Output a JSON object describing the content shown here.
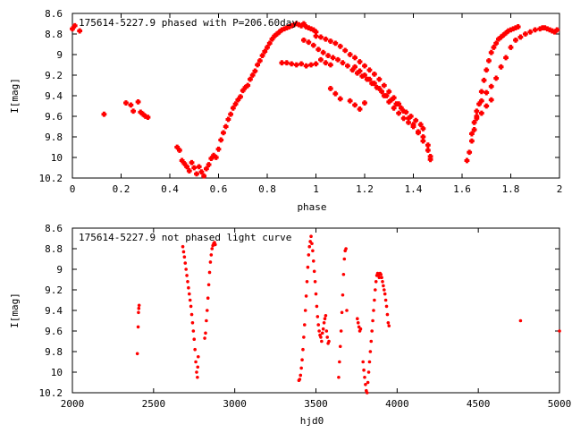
{
  "chart_data": [
    {
      "type": "scatter",
      "title": "175614-5227.9 phased with P=206.60day",
      "xlabel": "phase",
      "ylabel": "I[mag]",
      "xlim": [
        0,
        2
      ],
      "ylim": [
        10.2,
        8.6
      ],
      "y_inverted": true,
      "xticks": [
        "0",
        "0.2",
        "0.4",
        "0.6",
        "0.8",
        "1",
        "1.2",
        "1.4",
        "1.6",
        "1.8",
        "2"
      ],
      "yticks": [
        "8.6",
        "8.8",
        "9",
        "9.2",
        "9.4",
        "9.6",
        "9.8",
        "10",
        "10.2"
      ],
      "marker_color": "#ff0000",
      "grid": false,
      "series": [
        {
          "name": "",
          "x": [
            0.0,
            0.01,
            0.03,
            0.13,
            0.22,
            0.24,
            0.25,
            0.27,
            0.28,
            0.29,
            0.3,
            0.31,
            0.43,
            0.44,
            0.45,
            0.46,
            0.47,
            0.48,
            0.49,
            0.5,
            0.51,
            0.52,
            0.53,
            0.54,
            0.55,
            0.56,
            0.57,
            0.58,
            0.59,
            0.6,
            0.61,
            0.62,
            0.63,
            0.64,
            0.65,
            0.66,
            0.67,
            0.68,
            0.69,
            0.7,
            0.71,
            0.72,
            0.73,
            0.74,
            0.75,
            0.76,
            0.77,
            0.78,
            0.79,
            0.8,
            0.81,
            0.82,
            0.83,
            0.84,
            0.85,
            0.86,
            0.87,
            0.88,
            0.89,
            0.9,
            0.91,
            0.92,
            0.93,
            0.94,
            0.95,
            0.96,
            0.97,
            0.98,
            0.99,
            1.0,
            0.86,
            0.88,
            0.9,
            0.92,
            0.94,
            0.96,
            0.98,
            1.0,
            1.02,
            1.04,
            1.06,
            0.95,
            0.97,
            0.99,
            1.01,
            1.03,
            1.05,
            1.07,
            1.09,
            1.11,
            1.13,
            1.15,
            1.17,
            1.19,
            1.21,
            1.23,
            1.25,
            1.27,
            1.29,
            1.31,
            1.33,
            1.35,
            1.37,
            1.39,
            1.41,
            1.43,
            1.44,
            1.0,
            1.02,
            1.04,
            1.06,
            1.08,
            1.1,
            1.12,
            1.14,
            1.16,
            1.18,
            1.2,
            1.22,
            1.24,
            1.26,
            1.28,
            1.3,
            1.32,
            1.34,
            1.36,
            1.38,
            1.4,
            1.42,
            1.44,
            1.46,
            1.47,
            1.06,
            1.08,
            1.1,
            1.14,
            1.16,
            1.18,
            1.2,
            1.16,
            1.18,
            1.2,
            1.22,
            1.24,
            1.26,
            1.28,
            1.3,
            1.32,
            1.34,
            1.36,
            1.38,
            1.4,
            1.42,
            1.44,
            1.46,
            1.47,
            1.62,
            1.63,
            1.64,
            1.65,
            1.66,
            1.67,
            1.68,
            1.69,
            1.7,
            1.71,
            1.72,
            1.73,
            1.74,
            1.75,
            1.76,
            1.77,
            1.78,
            1.79,
            1.8,
            1.81,
            1.82,
            1.83,
            1.64,
            1.65,
            1.66,
            1.68,
            1.7,
            1.72,
            1.74,
            1.76,
            1.78,
            1.8,
            1.82,
            1.84,
            1.86,
            1.88,
            1.9,
            1.92,
            1.93,
            1.94,
            1.95,
            1.96,
            1.97,
            1.98,
            1.99,
            1.66,
            1.68,
            1.7,
            1.72
          ],
          "y": [
            8.75,
            8.72,
            8.77,
            9.58,
            9.47,
            9.49,
            9.55,
            9.46,
            9.56,
            9.58,
            9.6,
            9.61,
            9.9,
            9.93,
            10.03,
            10.06,
            10.09,
            10.13,
            10.05,
            10.1,
            10.16,
            10.09,
            10.14,
            10.18,
            10.11,
            10.07,
            10.01,
            9.98,
            10.0,
            9.92,
            9.83,
            9.76,
            9.7,
            9.63,
            9.58,
            9.52,
            9.48,
            9.44,
            9.41,
            9.35,
            9.32,
            9.3,
            9.24,
            9.2,
            9.16,
            9.1,
            9.06,
            9.01,
            8.97,
            8.93,
            8.89,
            8.85,
            8.82,
            8.8,
            8.78,
            8.76,
            8.75,
            8.74,
            8.73,
            8.72,
            8.71,
            8.7,
            8.71,
            8.72,
            8.7,
            8.73,
            8.74,
            8.75,
            8.76,
            8.78,
            9.08,
            9.08,
            9.09,
            9.1,
            9.09,
            9.11,
            9.1,
            9.09,
            9.05,
            9.08,
            9.1,
            8.86,
            8.88,
            8.91,
            8.95,
            8.98,
            9.01,
            9.03,
            9.05,
            9.08,
            9.11,
            9.15,
            9.18,
            9.21,
            9.24,
            9.28,
            9.32,
            9.36,
            9.4,
            9.44,
            9.48,
            9.52,
            9.56,
            9.6,
            9.64,
            9.68,
            9.72,
            8.82,
            8.83,
            8.85,
            8.87,
            8.89,
            8.92,
            8.96,
            9.0,
            9.03,
            9.07,
            9.11,
            9.15,
            9.19,
            9.24,
            9.3,
            9.36,
            9.42,
            9.48,
            9.55,
            9.62,
            9.68,
            9.76,
            9.84,
            9.93,
            10.02,
            9.33,
            9.38,
            9.43,
            9.45,
            9.49,
            9.53,
            9.47,
            9.12,
            9.16,
            9.2,
            9.24,
            9.28,
            9.33,
            9.4,
            9.46,
            9.52,
            9.57,
            9.62,
            9.66,
            9.7,
            9.75,
            9.8,
            9.88,
            9.99,
            10.03,
            9.95,
            9.84,
            9.73,
            9.6,
            9.48,
            9.36,
            9.25,
            9.15,
            9.06,
            8.98,
            8.93,
            8.89,
            8.85,
            8.83,
            8.81,
            8.79,
            8.77,
            8.76,
            8.75,
            8.74,
            8.73,
            9.77,
            9.66,
            9.55,
            9.45,
            9.37,
            9.31,
            9.23,
            9.12,
            9.03,
            8.93,
            8.86,
            8.83,
            8.8,
            8.78,
            8.76,
            8.75,
            8.74,
            8.74,
            8.75,
            8.76,
            8.77,
            8.78,
            8.76,
            9.62,
            9.57,
            9.5,
            9.44
          ]
        }
      ]
    },
    {
      "type": "scatter",
      "title": "175614-5227.9 not phased light curve",
      "xlabel": "hjd0",
      "ylabel": "I[mag]",
      "xlim": [
        2000,
        5000
      ],
      "ylim": [
        10.2,
        8.6
      ],
      "y_inverted": true,
      "xticks": [
        "2000",
        "2500",
        "3000",
        "3500",
        "4000",
        "4500",
        "5000"
      ],
      "yticks": [
        "8.6",
        "8.8",
        "9",
        "9.2",
        "9.4",
        "9.6",
        "9.8",
        "10",
        "10.2"
      ],
      "marker_color": "#ff0000",
      "grid": false,
      "series": [
        {
          "name": "",
          "x": [
            2400,
            2405,
            2407,
            2409,
            2411,
            2680,
            2685,
            2690,
            2695,
            2700,
            2705,
            2710,
            2715,
            2720,
            2725,
            2730,
            2735,
            2740,
            2745,
            2750,
            2755,
            2760,
            2765,
            2770,
            2772,
            2775,
            2815,
            2820,
            2825,
            2830,
            2835,
            2840,
            2845,
            2850,
            2855,
            2860,
            2865,
            2870,
            2875,
            2880,
            3395,
            3400,
            3405,
            3410,
            3415,
            3420,
            3425,
            3430,
            3435,
            3440,
            3445,
            3450,
            3455,
            3460,
            3465,
            3470,
            3475,
            3480,
            3485,
            3490,
            3495,
            3500,
            3505,
            3510,
            3515,
            3520,
            3525,
            3530,
            3535,
            3540,
            3545,
            3550,
            3555,
            3560,
            3565,
            3570,
            3575,
            3580,
            3640,
            3645,
            3650,
            3655,
            3660,
            3665,
            3670,
            3675,
            3680,
            3685,
            3690,
            3755,
            3760,
            3765,
            3770,
            3775,
            3790,
            3795,
            3800,
            3805,
            3810,
            3815,
            3820,
            3825,
            3830,
            3835,
            3840,
            3845,
            3850,
            3855,
            3860,
            3865,
            3870,
            3875,
            3880,
            3885,
            3890,
            3895,
            3900,
            3905,
            3910,
            3915,
            3920,
            3925,
            3930,
            3935,
            3940,
            3945,
            3950,
            4760,
            5000
          ],
          "y": [
            9.82,
            9.56,
            9.42,
            9.38,
            9.35,
            8.78,
            8.83,
            8.88,
            8.94,
            9.0,
            9.06,
            9.12,
            9.18,
            9.24,
            9.3,
            9.36,
            9.44,
            9.52,
            9.6,
            9.68,
            9.78,
            9.9,
            10.0,
            10.05,
            9.95,
            9.85,
            9.67,
            9.62,
            9.5,
            9.4,
            9.28,
            9.15,
            9.03,
            8.93,
            8.86,
            8.8,
            8.77,
            8.75,
            8.74,
            8.76,
            10.08,
            10.07,
            10.03,
            9.96,
            9.88,
            9.78,
            9.66,
            9.54,
            9.4,
            9.26,
            9.12,
            8.98,
            8.86,
            8.78,
            8.73,
            8.68,
            8.75,
            8.82,
            8.92,
            9.02,
            9.12,
            9.24,
            9.36,
            9.46,
            9.54,
            9.6,
            9.64,
            9.66,
            9.7,
            9.62,
            9.58,
            9.52,
            9.48,
            9.45,
            9.6,
            9.66,
            9.72,
            9.7,
            10.05,
            9.9,
            9.75,
            9.6,
            9.42,
            9.25,
            9.05,
            8.9,
            8.82,
            8.8,
            9.4,
            9.48,
            9.52,
            9.56,
            9.6,
            9.58,
            9.9,
            9.98,
            10.05,
            10.12,
            10.18,
            10.2,
            10.1,
            10.0,
            9.9,
            9.8,
            9.7,
            9.6,
            9.5,
            9.4,
            9.3,
            9.2,
            9.12,
            9.06,
            9.04,
            9.06,
            9.08,
            9.04,
            9.05,
            9.08,
            9.12,
            9.16,
            9.2,
            9.24,
            9.3,
            9.36,
            9.44,
            9.52,
            9.55,
            9.5,
            9.6
          ]
        }
      ]
    }
  ]
}
